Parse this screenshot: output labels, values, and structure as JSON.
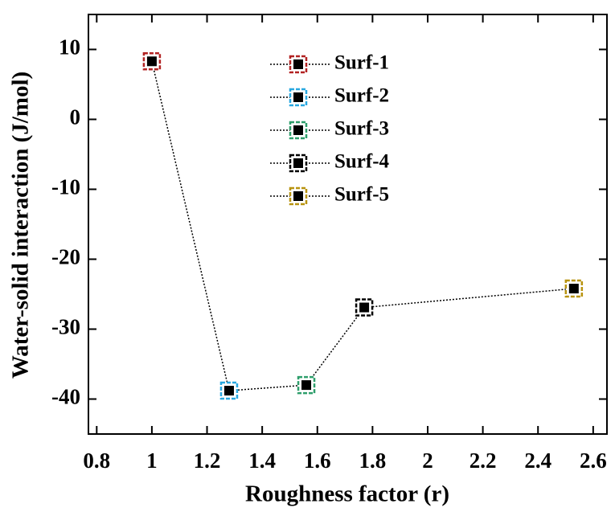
{
  "chart_data": {
    "type": "scatter",
    "x_label": "Roughness factor (r)",
    "y_label": "Water-solid interaction (J/mol)",
    "xlim": [
      0.77,
      2.65
    ],
    "ylim": [
      -45,
      15
    ],
    "xticks": [
      0.8,
      1.0,
      1.2,
      1.4,
      1.6,
      1.8,
      2.0,
      2.2,
      2.4,
      2.6
    ],
    "yticks": [
      -40,
      -30,
      -20,
      -10,
      0,
      10
    ],
    "connect_line": true,
    "series": [
      {
        "name": "Surf-1",
        "color": "#b22222",
        "x": [
          1.0
        ],
        "values": [
          8.3
        ]
      },
      {
        "name": "Surf-2",
        "color": "#29a8e0",
        "x": [
          1.28
        ],
        "values": [
          -38.8
        ]
      },
      {
        "name": "Surf-3",
        "color": "#2e9e6b",
        "x": [
          1.56
        ],
        "values": [
          -38
        ]
      },
      {
        "name": "Surf-4",
        "color": "#000000",
        "x": [
          1.77
        ],
        "values": [
          -26.9
        ]
      },
      {
        "name": "Surf-5",
        "color": "#b8930f",
        "x": [
          2.53
        ],
        "values": [
          -24.2
        ]
      }
    ]
  }
}
